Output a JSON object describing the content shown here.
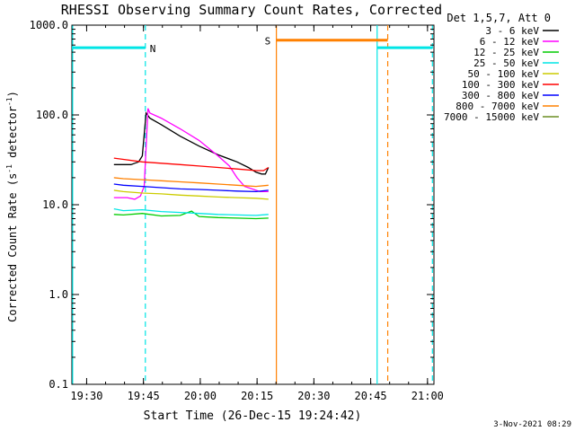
{
  "chart_data": {
    "type": "line",
    "title": "RHESSI Observing Summary Count Rates, Corrected",
    "xlabel": "Start Time (26-Dec-15 19:24:42)",
    "ylabel": "Corrected Count Rate (s",
    "ylabel_sup": "-1",
    "ylabel_tail": " detector",
    "ylabel_end": ")",
    "yscale": "log",
    "xlim_minutes": [
      1.4,
      97.0
    ],
    "ylim": [
      0.1,
      1000
    ],
    "x_ticks": [
      {
        "m": 5.3,
        "label": "19:30"
      },
      {
        "m": 20.3,
        "label": "19:45"
      },
      {
        "m": 35.3,
        "label": "20:00"
      },
      {
        "m": 50.3,
        "label": "20:15"
      },
      {
        "m": 65.3,
        "label": "20:30"
      },
      {
        "m": 80.3,
        "label": "20:45"
      },
      {
        "m": 95.3,
        "label": "21:00"
      }
    ],
    "y_ticks": [
      {
        "v": 0.1,
        "label": "0.1"
      },
      {
        "v": 1,
        "label": "1.0"
      },
      {
        "v": 10,
        "label": "10.0"
      },
      {
        "v": 100,
        "label": "100.0"
      },
      {
        "v": 1000,
        "label": "1000.0"
      }
    ],
    "legend_header": "Det 1,5,7, Att 0",
    "legend_position": "top-right-outside",
    "series": [
      {
        "name": "3 - 6 keV",
        "color": "#000000",
        "x": [
          12.5,
          17,
          18,
          19,
          20,
          21,
          22,
          25,
          30,
          35,
          40,
          45,
          48,
          50,
          51.5,
          52.5,
          53.3
        ],
        "y": [
          28,
          28,
          29,
          30,
          35,
          105,
          92,
          78,
          58,
          45,
          36,
          30,
          26,
          23,
          22,
          22,
          26
        ]
      },
      {
        "name": "6 - 12 keV",
        "color": "#ff00ff",
        "x": [
          12.5,
          16,
          18,
          19.5,
          20.5,
          21.5,
          22,
          25,
          30,
          35,
          40,
          43,
          45,
          47,
          49,
          51,
          53.3
        ],
        "y": [
          12,
          12,
          11.5,
          12.5,
          16,
          118,
          105,
          92,
          70,
          52,
          35,
          27,
          20,
          16,
          15,
          14,
          14
        ]
      },
      {
        "name": "12 - 25 keV",
        "color": "#00cc00",
        "x": [
          12.5,
          15,
          20,
          25,
          30,
          33,
          35,
          40,
          45,
          50,
          53.3
        ],
        "y": [
          7.8,
          7.7,
          8,
          7.5,
          7.6,
          8.5,
          7.4,
          7.2,
          7.1,
          7.0,
          7.1
        ]
      },
      {
        "name": "25 - 50 keV",
        "color": "#00e5e5",
        "x": [
          12.5,
          15,
          20,
          25,
          30,
          35,
          40,
          45,
          50,
          53.3
        ],
        "y": [
          9,
          8.6,
          8.8,
          8.4,
          8.2,
          8.0,
          7.8,
          7.7,
          7.6,
          7.8
        ]
      },
      {
        "name": "50 - 100 keV",
        "color": "#cccc00",
        "x": [
          12.5,
          15,
          20,
          25,
          30,
          35,
          40,
          45,
          50,
          53.3
        ],
        "y": [
          14.5,
          14,
          13.5,
          13.2,
          12.8,
          12.5,
          12.2,
          12,
          11.8,
          11.5
        ]
      },
      {
        "name": "100 - 300 keV",
        "color": "#ff0000",
        "x": [
          12.5,
          15,
          20,
          25,
          30,
          35,
          40,
          45,
          50,
          52,
          53.3
        ],
        "y": [
          33,
          32,
          30,
          29,
          28,
          27,
          26,
          25,
          24,
          24,
          26
        ]
      },
      {
        "name": "300 - 800 keV",
        "color": "#0000ff",
        "x": [
          12.5,
          15,
          20,
          25,
          30,
          35,
          40,
          45,
          50,
          53.3
        ],
        "y": [
          17,
          16.5,
          16,
          15.5,
          15,
          14.8,
          14.5,
          14.2,
          14,
          14.5
        ]
      },
      {
        "name": "800 - 7000 keV",
        "color": "#ff8000",
        "x": [
          12.5,
          15,
          20,
          25,
          30,
          35,
          40,
          45,
          50,
          53.3
        ],
        "y": [
          20,
          19.5,
          19,
          18.5,
          18,
          17.5,
          17,
          16.5,
          16,
          16.5
        ]
      },
      {
        "name": "7000 - 15000 keV",
        "color": "#6b8e23",
        "x": [],
        "y": []
      }
    ],
    "flags": [
      {
        "label": "N",
        "color": "#00e5e5",
        "x": [
          1.4,
          20.8
        ],
        "y": 560
      },
      {
        "label": "S",
        "color": "#ff8000",
        "x": [
          55.4,
          84.8
        ],
        "y": 680
      },
      {
        "label": "",
        "color": "#00e5e5",
        "x": [
          82.0,
          96.6
        ],
        "y": 560
      }
    ],
    "vlines": [
      {
        "m": 1.6,
        "color": "#00e5e5",
        "dash": false
      },
      {
        "m": 20.8,
        "color": "#00e5e5",
        "dash": true
      },
      {
        "m": 55.4,
        "color": "#ff8000",
        "dash": false
      },
      {
        "m": 82.0,
        "color": "#00e5e5",
        "dash": false
      },
      {
        "m": 84.8,
        "color": "#ff8000",
        "dash": true
      },
      {
        "m": 96.6,
        "color": "#00e5e5",
        "dash": true
      }
    ],
    "footer_date": "3-Nov-2021 08:29"
  }
}
